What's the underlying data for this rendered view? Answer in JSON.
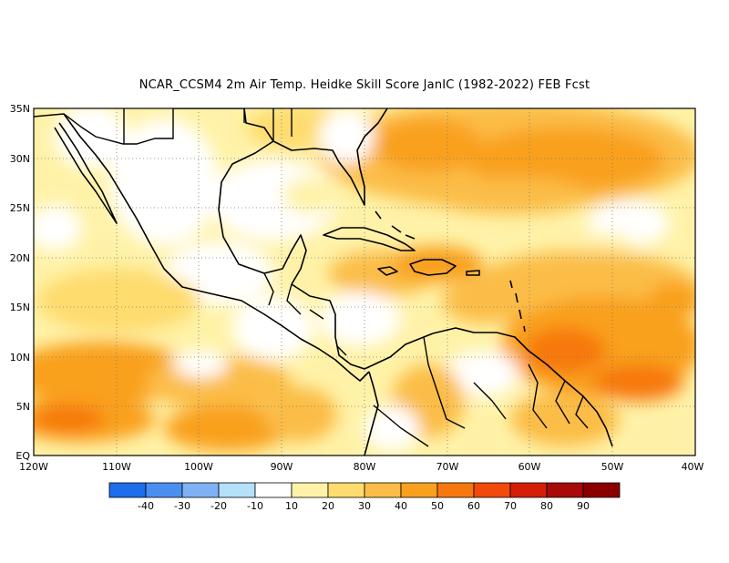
{
  "title": "NCAR_CCSM4  2m Air Temp. Heidke Skill Score JanIC (1982-2022) FEB Fcst",
  "map": {
    "lon_range": [
      -120,
      -40
    ],
    "lat_range": [
      0,
      35
    ],
    "lat_ticks": [
      "35N",
      "30N",
      "25N",
      "20N",
      "15N",
      "10N",
      "5N",
      "EQ"
    ],
    "lon_ticks": [
      "120W",
      "110W",
      "100W",
      "90W",
      "80W",
      "70W",
      "60W",
      "50W",
      "40W"
    ],
    "grid": "dotted",
    "region": "Central America / Caribbean"
  },
  "colorbar": {
    "levels": [
      "-40",
      "-30",
      "-20",
      "-10",
      "10",
      "20",
      "30",
      "40",
      "50",
      "60",
      "70",
      "80",
      "90"
    ],
    "colors": [
      "#1e6eeb",
      "#4a8ff0",
      "#7fb2f5",
      "#b4e0fa",
      "#ffffff",
      "#fff2a8",
      "#fedc6e",
      "#fbbd47",
      "#f9a01e",
      "#f7780e",
      "#f14a09",
      "#d41f08",
      "#a80a0a",
      "#8a0000"
    ]
  }
}
